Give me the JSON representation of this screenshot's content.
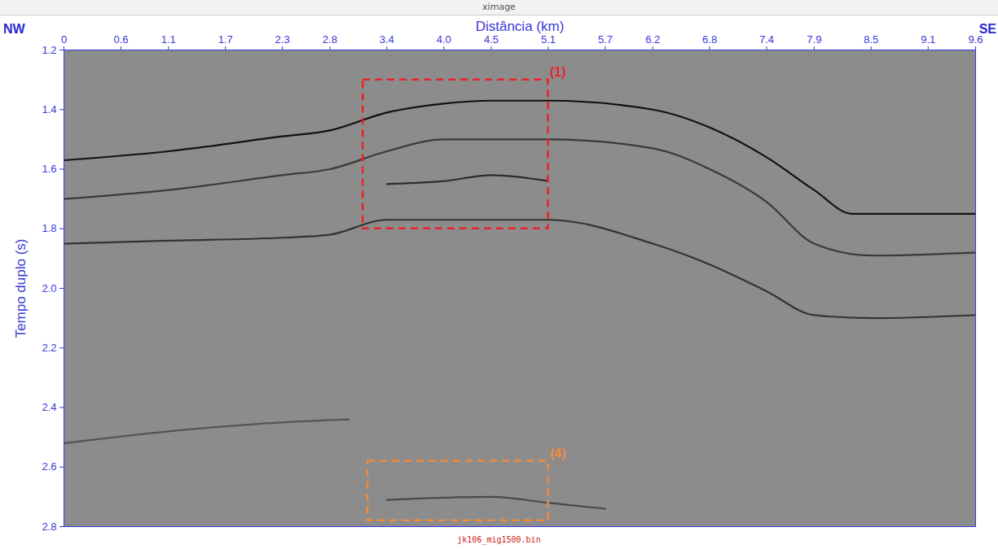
{
  "chart_data": {
    "type": "seismic",
    "window_title": "ximage",
    "x_label": "Distância (km)",
    "y_label": "Tempo duplo (s)",
    "direction_labels": {
      "left": "NW",
      "right": "SE"
    },
    "file_label": "jk106_mig1500.bin",
    "xlim": [
      0,
      9.6
    ],
    "ylim": [
      1.2,
      2.8
    ],
    "xticks": [
      0,
      0.6,
      1.1,
      1.7,
      2.3,
      2.8,
      3.4,
      {
        "value": 4,
        "label": "4.0"
      },
      4.5,
      5.1,
      5.7,
      6.2,
      6.8,
      7.4,
      7.9,
      8.5,
      9.1,
      9.6
    ],
    "yticks": [
      1.2,
      1.4,
      1.6,
      1.8,
      {
        "value": 2,
        "label": "2.0"
      },
      2.2,
      2.4,
      2.6,
      2.8
    ],
    "series": [
      {
        "color": "#111111",
        "x": [
          0,
          1.1,
          2.3,
          2.8,
          3.4,
          4.0,
          4.5,
          5.1,
          6.2,
          6.8,
          7.4,
          7.9,
          8.3,
          9.6
        ],
        "values": [
          1.57,
          1.54,
          1.49,
          1.47,
          1.41,
          1.38,
          1.37,
          1.37,
          1.4,
          1.46,
          1.56,
          1.67,
          1.75,
          1.75
        ]
      },
      {
        "color": "#3a3a3a",
        "x": [
          0,
          1.1,
          2.3,
          2.8,
          3.4,
          4.0,
          5.1,
          6.2,
          6.8,
          7.4,
          7.9,
          8.5,
          9.6
        ],
        "values": [
          1.7,
          1.67,
          1.62,
          1.6,
          1.54,
          1.5,
          1.5,
          1.53,
          1.6,
          1.71,
          1.85,
          1.89,
          1.88
        ]
      },
      {
        "color": "#2c2c2c",
        "x": [
          3.4,
          4.0,
          4.5,
          5.1
        ],
        "values": [
          1.65,
          1.64,
          1.62,
          1.64
        ]
      },
      {
        "color": "#333333",
        "x": [
          0,
          1.1,
          2.3,
          2.8,
          3.4,
          5.1,
          6.2,
          6.8,
          7.4,
          7.9,
          8.5,
          9.6
        ],
        "values": [
          1.85,
          1.84,
          1.83,
          1.82,
          1.77,
          1.77,
          1.85,
          1.92,
          2.01,
          2.09,
          2.1,
          2.09
        ]
      },
      {
        "color": "#555555",
        "x": [
          0,
          1.1,
          2.3,
          3.0
        ],
        "values": [
          2.52,
          2.48,
          2.45,
          2.44
        ]
      },
      {
        "color": "#4a4a4a",
        "x": [
          3.4,
          4.5,
          5.1,
          5.7
        ],
        "values": [
          2.71,
          2.7,
          2.72,
          2.74
        ]
      }
    ],
    "annotations": [
      {
        "label": "(1)",
        "color": "#e8242a",
        "x": [
          3.15,
          5.1
        ],
        "y": [
          1.3,
          1.8
        ]
      },
      {
        "label": "(4)",
        "color": "#f08a3c",
        "x": [
          3.2,
          5.1
        ],
        "y": [
          2.58,
          2.78
        ]
      }
    ]
  }
}
